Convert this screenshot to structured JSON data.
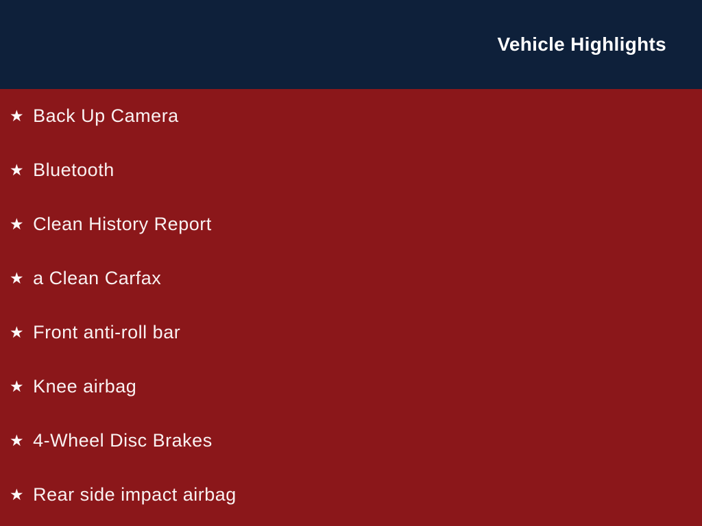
{
  "header": {
    "title": "Vehicle Highlights",
    "background_color": "#0e203a",
    "text_color": "#ffffff"
  },
  "list": {
    "bullet_icon": "star-icon",
    "bullet_glyph": "★",
    "background_color": "#8b171a",
    "text_color": "#f9f1f1",
    "items": [
      "Back Up Camera",
      "Bluetooth",
      "Clean History Report",
      "a Clean Carfax",
      "Front anti-roll bar",
      "Knee airbag",
      "4-Wheel Disc Brakes",
      "Rear side impact airbag"
    ]
  }
}
